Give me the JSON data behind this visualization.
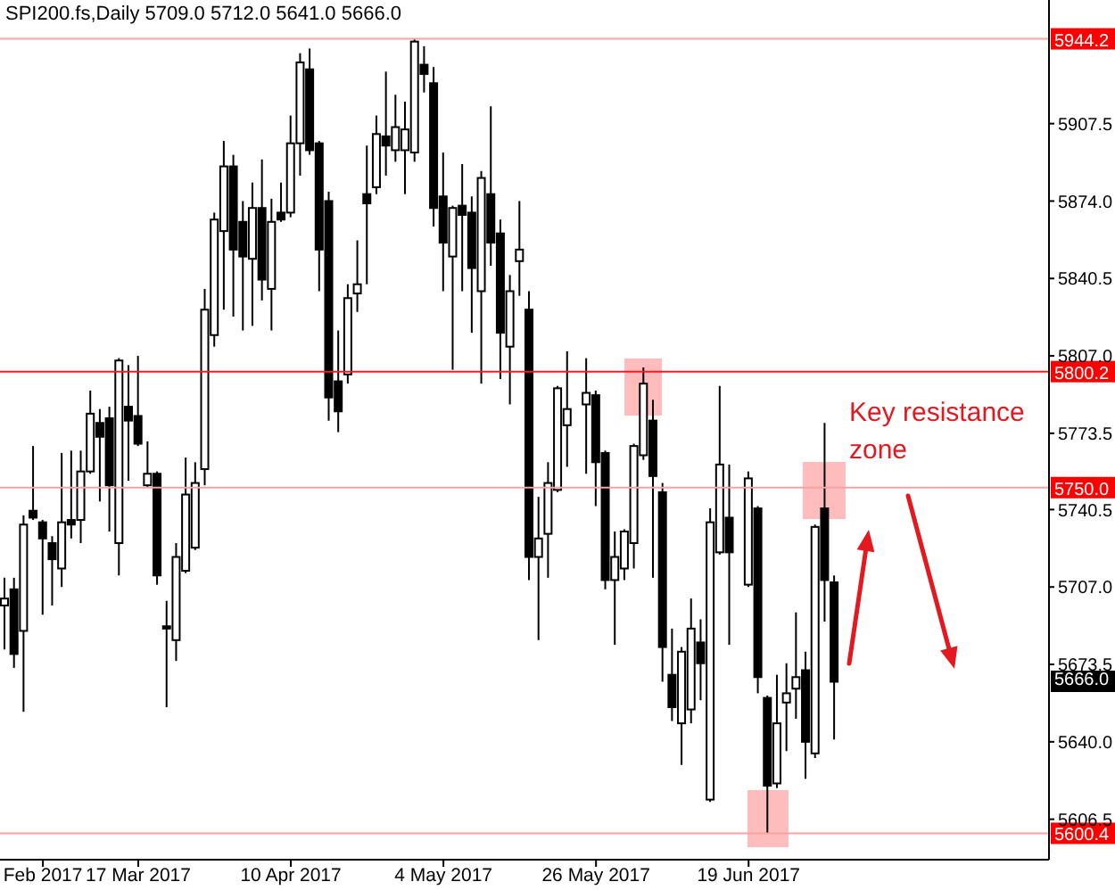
{
  "chart_data": {
    "type": "candlestick",
    "title": "SPI200.fs,Daily 5709.0 5712.0 5641.0 5666.0",
    "categories": [
      null,
      null,
      null,
      null,
      "Feb 2017",
      null,
      null,
      null,
      null,
      null,
      null,
      null,
      null,
      null,
      "17 Mar 2017",
      null,
      null,
      null,
      null,
      null,
      null,
      null,
      null,
      null,
      null,
      null,
      null,
      null,
      null,
      null,
      "10 Apr 2017",
      null,
      null,
      null,
      null,
      null,
      null,
      null,
      null,
      null,
      null,
      null,
      null,
      null,
      null,
      null,
      "4 May 2017",
      null,
      null,
      null,
      null,
      null,
      null,
      null,
      null,
      null,
      null,
      null,
      null,
      null,
      null,
      null,
      "26 May 2017",
      null,
      null,
      null,
      null,
      null,
      null,
      null,
      null,
      null,
      null,
      null,
      null,
      null,
      null,
      null,
      "19 Jun 2017",
      null,
      null,
      null,
      null,
      null,
      null,
      null,
      null,
      null,
      null,
      null,
      null,
      null,
      null,
      null,
      null,
      null,
      null,
      null,
      null,
      null,
      null,
      null,
      null,
      null,
      null,
      null,
      null,
      null,
      null,
      null
    ],
    "ohlc": [
      [
        5699,
        5711,
        5680,
        5702
      ],
      [
        5706,
        5711,
        5672,
        5678
      ],
      [
        5688,
        5738,
        5653,
        5734
      ],
      [
        5740,
        5768,
        5736,
        5737
      ],
      [
        5735,
        5736,
        5695,
        5728
      ],
      [
        5726,
        5729,
        5699,
        5719
      ],
      [
        5715,
        5765,
        5707,
        5735
      ],
      [
        5736,
        5766,
        5728,
        5734
      ],
      [
        5736,
        5766,
        5726,
        5757
      ],
      [
        5757,
        5792,
        5756,
        5782
      ],
      [
        5778,
        5784,
        5744,
        5772
      ],
      [
        5780,
        5785,
        5731,
        5751
      ],
      [
        5726,
        5806,
        5712,
        5805
      ],
      [
        5785,
        5803,
        5753,
        5779
      ],
      [
        5781,
        5807,
        5768,
        5769
      ],
      [
        5751,
        5770,
        5750,
        5756
      ],
      [
        5756,
        5757,
        5708,
        5712
      ],
      [
        5690,
        5701,
        5655,
        5689
      ],
      [
        5684,
        5726,
        5675,
        5720
      ],
      [
        5714,
        5763,
        5713,
        5747
      ],
      [
        5724,
        5761,
        5723,
        5752
      ],
      [
        5758,
        5836,
        5751,
        5827
      ],
      [
        5816,
        5869,
        5811,
        5866
      ],
      [
        5861,
        5900,
        5827,
        5889
      ],
      [
        5889,
        5894,
        5824,
        5853
      ],
      [
        5865,
        5874,
        5818,
        5850
      ],
      [
        5849,
        5882,
        5820,
        5871
      ],
      [
        5871,
        5892,
        5831,
        5840
      ],
      [
        5836,
        5875,
        5818,
        5865
      ],
      [
        5869,
        5882,
        5865,
        5866
      ],
      [
        5869,
        5911,
        5867,
        5899
      ],
      [
        5899,
        5938,
        5885,
        5934
      ],
      [
        5931,
        5940,
        5894,
        5896
      ],
      [
        5899,
        5900,
        5835,
        5853
      ],
      [
        5874,
        5878,
        5779,
        5789
      ],
      [
        5796,
        5818,
        5774,
        5783
      ],
      [
        5799,
        5838,
        5795,
        5832
      ],
      [
        5834,
        5857,
        5826,
        5838
      ],
      [
        5877,
        5898,
        5838,
        5873
      ],
      [
        5880,
        5911,
        5877,
        5903
      ],
      [
        5902,
        5930,
        5885,
        5898
      ],
      [
        5896,
        5920,
        5891,
        5906
      ],
      [
        5896,
        5917,
        5877,
        5905
      ],
      [
        5895,
        5944.2,
        5891,
        5943
      ],
      [
        5933,
        5941,
        5921,
        5929
      ],
      [
        5925,
        5932,
        5863,
        5871
      ],
      [
        5876,
        5895,
        5835,
        5856
      ],
      [
        5850,
        5872,
        5801,
        5871
      ],
      [
        5872,
        5890,
        5835,
        5868
      ],
      [
        5869,
        5876,
        5817,
        5845
      ],
      [
        5835,
        5887,
        5795,
        5884
      ],
      [
        5877,
        5915,
        5846,
        5856
      ],
      [
        5860,
        5866,
        5797,
        5817
      ],
      [
        5811,
        5842,
        5786,
        5835
      ],
      [
        5848,
        5874,
        5833,
        5853
      ],
      [
        5827,
        5835,
        5710,
        5720
      ],
      [
        5720,
        5746,
        5684,
        5728
      ],
      [
        5730,
        5761,
        5711,
        5752
      ],
      [
        5749,
        5794,
        5748,
        5793
      ],
      [
        5777,
        5809,
        5759,
        5784
      ],
      null,
      [
        5786,
        5806,
        5756,
        5791
      ],
      [
        5790,
        5792,
        5742,
        5761
      ],
      [
        5765,
        5766,
        5706,
        5710
      ],
      [
        5710,
        5731,
        5682,
        5720
      ],
      [
        5715,
        5732,
        5710,
        5731
      ],
      [
        5726,
        5769,
        5715,
        5768
      ],
      [
        5764,
        5802,
        5762,
        5795
      ],
      [
        5779,
        5788,
        5711,
        5755
      ],
      [
        5748,
        5752,
        5666,
        5681
      ],
      [
        5669,
        5689,
        5649,
        5655
      ],
      [
        5648,
        5681,
        5630,
        5679
      ],
      [
        5654,
        5702,
        5648,
        5689
      ],
      [
        5683,
        5693,
        5658,
        5674
      ],
      [
        5615,
        5741,
        5614,
        5735
      ],
      [
        5722,
        5794,
        5721,
        5760
      ],
      [
        5737,
        5760,
        5682,
        5722
      ],
      null,
      [
        5708,
        5757,
        5707,
        5754
      ],
      [
        5741,
        5742,
        5661,
        5668
      ],
      [
        5659,
        5660,
        5600.4,
        5621
      ],
      [
        5622,
        5669,
        5620,
        5648
      ],
      [
        5657,
        5674,
        5636,
        5661
      ],
      [
        5663,
        5696,
        5650,
        5668
      ],
      [
        5671,
        5679,
        5624,
        5640
      ],
      [
        5635,
        5734,
        5633,
        5733
      ],
      [
        5741,
        5778,
        5692,
        5710
      ],
      [
        5709.0,
        5712.0,
        5641.0,
        5666.0
      ],
      null,
      null,
      null,
      null,
      null,
      null,
      null,
      null,
      null,
      null,
      null,
      null,
      null,
      null,
      null,
      null,
      null,
      null,
      null,
      null,
      null,
      null
    ],
    "ylim": [
      5589,
      5961
    ],
    "yticks": [
      5606.5,
      {
        "value": 5640,
        "label": "5640.0"
      },
      5673.5,
      {
        "value": 5707,
        "label": "5707.0"
      },
      5740.5,
      5773.5,
      {
        "value": 5807,
        "label": "5807.0"
      },
      5840.5,
      {
        "value": 5874,
        "label": "5874.0"
      },
      5907.5
    ],
    "ref_lines": [
      {
        "axis": "y",
        "value": 5944.2,
        "label": "5944.2",
        "color": "#f7a3a3"
      },
      {
        "axis": "y",
        "value": 5800.2,
        "label": "5800.2",
        "color": "#ff1a1a"
      },
      {
        "axis": "y",
        "value": 5750,
        "label": "5750.0",
        "color": "#f7a3a3"
      },
      {
        "axis": "y",
        "value": 5600.4,
        "label": "5600.4",
        "color": "#f7a3a3"
      }
    ],
    "annotations": [
      "Key resistance zone",
      {
        "text": "5666.0",
        "y": 5666
      }
    ]
  }
}
